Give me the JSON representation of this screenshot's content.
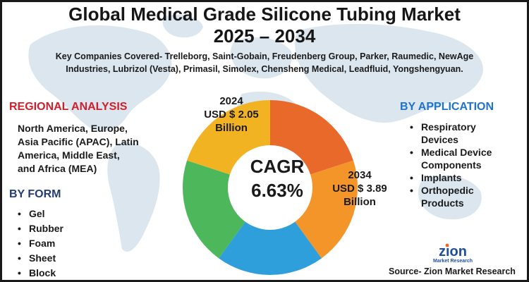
{
  "title_line1": "Global Medical Grade Silicone Tubing Market",
  "title_line2": "2025 – 2034",
  "companies_line1": "Key Companies Covered- Trelleborg, Saint-Gobain, Freudenberg Group, Parker, Raumedic, NewAge",
  "companies_line2": "Industries, Lubrizol (Vesta), Primasil, Simolex, Chensheng Medical, Leadfluid, Yongshengyuan.",
  "regional": {
    "heading": "REGIONAL ANALYSIS",
    "lines": [
      "North America, Europe,",
      "Asia Pacific (APAC), Latin",
      "America, Middle East,",
      "and Africa (MEA)"
    ]
  },
  "form": {
    "heading": "BY FORM",
    "items": [
      "Gel",
      "Rubber",
      "Foam",
      "Sheet",
      "Block"
    ]
  },
  "application": {
    "heading": "BY APPLICATION",
    "items": [
      [
        "Respiratory",
        "Devices"
      ],
      [
        "Medical Device",
        "Components"
      ],
      [
        "Implants"
      ],
      [
        "Orthopedic",
        "Products"
      ]
    ]
  },
  "donut": {
    "segments": [
      {
        "color": "#e8692a",
        "fraction": 0.2
      },
      {
        "color": "#f4952a",
        "fraction": 0.2
      },
      {
        "color": "#2f9fdb",
        "fraction": 0.2
      },
      {
        "color": "#4db85b",
        "fraction": 0.2
      },
      {
        "color": "#f2b322",
        "fraction": 0.2
      }
    ],
    "start_2024": [
      "2024",
      "USD $ 2.05",
      "Billion"
    ],
    "end_2034": [
      "2034",
      "USD $ 3.89",
      "Billion"
    ],
    "cagr_label": "CAGR",
    "cagr_value": "6.63%"
  },
  "logo": {
    "name": "zion",
    "sub": "Market Research"
  },
  "source": "Source- Zion Market Research",
  "colors": {
    "map": "#dbe6ef",
    "regional": "#d21f2b",
    "form": "#243d73",
    "application": "#1e73cf"
  }
}
